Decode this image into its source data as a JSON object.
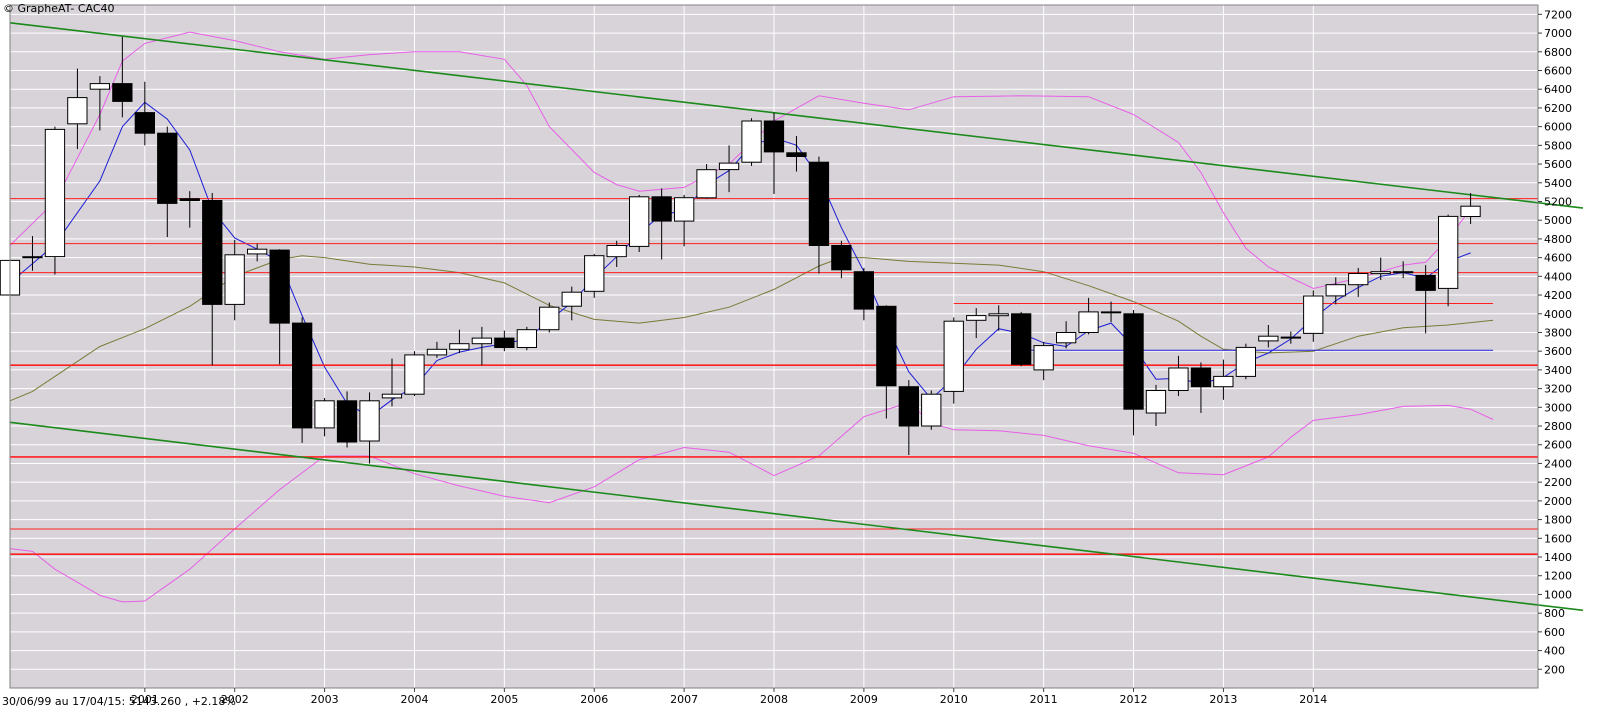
{
  "header": {
    "title": "© GrapheAT- CAC40",
    "footer_info": "30/06/99 au 17/04/15: 5143.260 , +2.18%"
  },
  "colors": {
    "background": "#ffffff",
    "plot_background": "#d7d3d8",
    "grid": "#ffffff",
    "up_candle": "#ffffff",
    "down_candle": "#000000",
    "bollinger_band": "#e85fe8",
    "moving_average_short": "#1c1cd8",
    "moving_average_long": "#7a7a38",
    "trend_channel": "#1b8a1b",
    "support_resistance": "#ff2020"
  },
  "chart_data": {
    "type": "candlestick",
    "title": "© GrapheAT- CAC40",
    "footer": "30/06/99 au 17/04/15: 5143.260 , +2.18%",
    "x_axis": {
      "tick_labels": [
        "2001",
        "2002",
        "2003",
        "2004",
        "2005",
        "2006",
        "2007",
        "2008",
        "2009",
        "2010",
        "2011",
        "2012",
        "2013",
        "2014"
      ],
      "range": [
        1999.5,
        2016.5
      ]
    },
    "y_axis": {
      "tick_labels": [
        "7200",
        "7000",
        "6800",
        "6600",
        "6400",
        "6200",
        "6000",
        "5800",
        "5600",
        "5400",
        "5200",
        "5000",
        "4800",
        "4600",
        "4400",
        "4200",
        "4000",
        "3800",
        "3600",
        "3400",
        "3200",
        "3000",
        "2800",
        "2600",
        "2400",
        "2200",
        "2000",
        "1800",
        "1600",
        "1400",
        "1200",
        "1000",
        "800",
        "600",
        "400",
        "200"
      ],
      "range": [
        0,
        7300
      ],
      "side": "right"
    },
    "grid": true,
    "candles": [
      {
        "t": 1999.5,
        "o": 4200,
        "h": 4620,
        "l": 4100,
        "c": 4570
      },
      {
        "t": 1999.75,
        "o": 4600,
        "h": 4830,
        "l": 4460,
        "c": 4610
      },
      {
        "t": 2000.0,
        "o": 4610,
        "h": 6000,
        "l": 4420,
        "c": 5970
      },
      {
        "t": 2000.25,
        "o": 6030,
        "h": 6620,
        "l": 5760,
        "c": 6310
      },
      {
        "t": 2000.5,
        "o": 6400,
        "h": 6540,
        "l": 5960,
        "c": 6460
      },
      {
        "t": 2000.75,
        "o": 6460,
        "h": 6960,
        "l": 6100,
        "c": 6270
      },
      {
        "t": 2001.0,
        "o": 6150,
        "h": 6480,
        "l": 5800,
        "c": 5930
      },
      {
        "t": 2001.25,
        "o": 5930,
        "h": 6000,
        "l": 4820,
        "c": 5180
      },
      {
        "t": 2001.5,
        "o": 5230,
        "h": 5310,
        "l": 4920,
        "c": 5210
      },
      {
        "t": 2001.75,
        "o": 5210,
        "h": 5290,
        "l": 3450,
        "c": 4100
      },
      {
        "t": 2002.0,
        "o": 4100,
        "h": 4790,
        "l": 3930,
        "c": 4630
      },
      {
        "t": 2002.25,
        "o": 4640,
        "h": 4750,
        "l": 4560,
        "c": 4690
      },
      {
        "t": 2002.5,
        "o": 4680,
        "h": 4690,
        "l": 3460,
        "c": 3900
      },
      {
        "t": 2002.75,
        "o": 3900,
        "h": 3960,
        "l": 2620,
        "c": 2780
      },
      {
        "t": 2003.0,
        "o": 2780,
        "h": 3100,
        "l": 2690,
        "c": 3070
      },
      {
        "t": 2003.25,
        "o": 3070,
        "h": 3170,
        "l": 2570,
        "c": 2630
      },
      {
        "t": 2003.5,
        "o": 2640,
        "h": 3160,
        "l": 2400,
        "c": 3070
      },
      {
        "t": 2003.75,
        "o": 3100,
        "h": 3520,
        "l": 3010,
        "c": 3140
      },
      {
        "t": 2004.0,
        "o": 3140,
        "h": 3600,
        "l": 3120,
        "c": 3560
      },
      {
        "t": 2004.25,
        "o": 3560,
        "h": 3700,
        "l": 3530,
        "c": 3620
      },
      {
        "t": 2004.5,
        "o": 3620,
        "h": 3830,
        "l": 3580,
        "c": 3680
      },
      {
        "t": 2004.75,
        "o": 3680,
        "h": 3860,
        "l": 3450,
        "c": 3740
      },
      {
        "t": 2005.0,
        "o": 3740,
        "h": 3820,
        "l": 3600,
        "c": 3640
      },
      {
        "t": 2005.25,
        "o": 3640,
        "h": 3860,
        "l": 3610,
        "c": 3830
      },
      {
        "t": 2005.5,
        "o": 3830,
        "h": 4120,
        "l": 3800,
        "c": 4070
      },
      {
        "t": 2005.75,
        "o": 4080,
        "h": 4290,
        "l": 3930,
        "c": 4230
      },
      {
        "t": 2006.0,
        "o": 4240,
        "h": 4640,
        "l": 4170,
        "c": 4620
      },
      {
        "t": 2006.25,
        "o": 4610,
        "h": 4780,
        "l": 4500,
        "c": 4730
      },
      {
        "t": 2006.5,
        "o": 4720,
        "h": 5270,
        "l": 4660,
        "c": 5250
      },
      {
        "t": 2006.75,
        "o": 5250,
        "h": 5340,
        "l": 4580,
        "c": 4990
      },
      {
        "t": 2007.0,
        "o": 4990,
        "h": 5270,
        "l": 4720,
        "c": 5240
      },
      {
        "t": 2007.25,
        "o": 5240,
        "h": 5600,
        "l": 5230,
        "c": 5540
      },
      {
        "t": 2007.5,
        "o": 5540,
        "h": 5800,
        "l": 5300,
        "c": 5610
      },
      {
        "t": 2007.75,
        "o": 5620,
        "h": 6090,
        "l": 5580,
        "c": 6060
      },
      {
        "t": 2008.0,
        "o": 6060,
        "h": 6150,
        "l": 5280,
        "c": 5730
      },
      {
        "t": 2008.25,
        "o": 5720,
        "h": 5900,
        "l": 5520,
        "c": 5680
      },
      {
        "t": 2008.5,
        "o": 5620,
        "h": 5680,
        "l": 4430,
        "c": 4730
      },
      {
        "t": 2008.75,
        "o": 4730,
        "h": 4780,
        "l": 4380,
        "c": 4470
      },
      {
        "t": 2009.0,
        "o": 4450,
        "h": 4490,
        "l": 3930,
        "c": 4050
      },
      {
        "t": 2009.25,
        "o": 4080,
        "h": 4090,
        "l": 2880,
        "c": 3230
      },
      {
        "t": 2009.5,
        "o": 3220,
        "h": 3290,
        "l": 2490,
        "c": 2800
      },
      {
        "t": 2009.75,
        "o": 2800,
        "h": 3180,
        "l": 2760,
        "c": 3140
      },
      {
        "t": 2010.0,
        "o": 3170,
        "h": 3960,
        "l": 3040,
        "c": 3920
      },
      {
        "t": 2010.25,
        "o": 3930,
        "h": 4060,
        "l": 3740,
        "c": 3980
      },
      {
        "t": 2010.5,
        "o": 3980,
        "h": 4090,
        "l": 3820,
        "c": 4000
      },
      {
        "t": 2010.75,
        "o": 4000,
        "h": 4020,
        "l": 3440,
        "c": 3460
      },
      {
        "t": 2011.0,
        "o": 3400,
        "h": 3700,
        "l": 3290,
        "c": 3660
      },
      {
        "t": 2011.25,
        "o": 3690,
        "h": 3920,
        "l": 3630,
        "c": 3800
      },
      {
        "t": 2011.5,
        "o": 3800,
        "h": 4170,
        "l": 3780,
        "c": 4020
      },
      {
        "t": 2011.75,
        "o": 4020,
        "h": 4130,
        "l": 3910,
        "c": 4010
      },
      {
        "t": 2012.0,
        "o": 4000,
        "h": 4040,
        "l": 2700,
        "c": 2980
      },
      {
        "t": 2012.25,
        "o": 2940,
        "h": 3240,
        "l": 2800,
        "c": 3180
      },
      {
        "t": 2012.5,
        "o": 3180,
        "h": 3550,
        "l": 3120,
        "c": 3420
      },
      {
        "t": 2012.75,
        "o": 3420,
        "h": 3480,
        "l": 2940,
        "c": 3220
      },
      {
        "t": 2013.0,
        "o": 3220,
        "h": 3510,
        "l": 3080,
        "c": 3330
      },
      {
        "t": 2013.25,
        "o": 3330,
        "h": 3680,
        "l": 3300,
        "c": 3640
      },
      {
        "t": 2013.5,
        "o": 3710,
        "h": 3880,
        "l": 3640,
        "c": 3760
      },
      {
        "t": 2013.75,
        "o": 3740,
        "h": 3810,
        "l": 3680,
        "c": 3750
      },
      {
        "t": 2014.0,
        "o": 3790,
        "h": 4250,
        "l": 3700,
        "c": 4190
      },
      {
        "t": 2014.25,
        "o": 4190,
        "h": 4390,
        "l": 4100,
        "c": 4310
      },
      {
        "t": 2014.5,
        "o": 4310,
        "h": 4490,
        "l": 4180,
        "c": 4430
      },
      {
        "t": 2014.75,
        "o": 4430,
        "h": 4600,
        "l": 4360,
        "c": 4450
      },
      {
        "t": 2015.0,
        "o": 4450,
        "h": 4560,
        "l": 4380,
        "c": 4440
      },
      {
        "t": 2015.25,
        "o": 4410,
        "h": 4520,
        "l": 3790,
        "c": 4250
      },
      {
        "t": 2015.5,
        "o": 4270,
        "h": 5060,
        "l": 4080,
        "c": 5040
      },
      {
        "t": 2015.75,
        "o": 5040,
        "h": 5290,
        "l": 4960,
        "c": 5150
      }
    ],
    "bollinger_upper": [
      [
        1999.5,
        4730
      ],
      [
        2000.0,
        5200
      ],
      [
        2000.5,
        6130
      ],
      [
        2000.75,
        6700
      ],
      [
        2001.0,
        6890
      ],
      [
        2001.5,
        7010
      ],
      [
        2002.0,
        6920
      ],
      [
        2002.5,
        6800
      ],
      [
        2003.0,
        6720
      ],
      [
        2003.5,
        6770
      ],
      [
        2004.0,
        6800
      ],
      [
        2004.5,
        6800
      ],
      [
        2005.0,
        6720
      ],
      [
        2005.25,
        6440
      ],
      [
        2005.5,
        6000
      ],
      [
        2006.0,
        5510
      ],
      [
        2006.25,
        5380
      ],
      [
        2006.5,
        5310
      ],
      [
        2007.0,
        5350
      ],
      [
        2007.5,
        5600
      ],
      [
        2008.0,
        6060
      ],
      [
        2008.5,
        6330
      ],
      [
        2009.0,
        6250
      ],
      [
        2009.5,
        6180
      ],
      [
        2010.0,
        6320
      ],
      [
        2010.75,
        6330
      ],
      [
        2011.5,
        6320
      ],
      [
        2012.0,
        6130
      ],
      [
        2012.5,
        5830
      ],
      [
        2012.75,
        5510
      ],
      [
        2013.0,
        5080
      ],
      [
        2013.25,
        4700
      ],
      [
        2013.5,
        4500
      ],
      [
        2014.0,
        4270
      ],
      [
        2014.5,
        4380
      ],
      [
        2015.0,
        4520
      ],
      [
        2015.25,
        4550
      ],
      [
        2015.5,
        4800
      ],
      [
        2015.75,
        5120
      ]
    ],
    "bollinger_lower": [
      [
        1999.5,
        1490
      ],
      [
        1999.75,
        1460
      ],
      [
        2000.0,
        1270
      ],
      [
        2000.5,
        990
      ],
      [
        2000.75,
        920
      ],
      [
        2001.0,
        930
      ],
      [
        2001.5,
        1270
      ],
      [
        2002.0,
        1700
      ],
      [
        2002.5,
        2120
      ],
      [
        2003.0,
        2480
      ],
      [
        2003.5,
        2480
      ],
      [
        2004.0,
        2290
      ],
      [
        2004.5,
        2160
      ],
      [
        2005.0,
        2050
      ],
      [
        2005.5,
        1980
      ],
      [
        2006.0,
        2150
      ],
      [
        2006.5,
        2440
      ],
      [
        2007.0,
        2570
      ],
      [
        2007.5,
        2520
      ],
      [
        2008.0,
        2270
      ],
      [
        2008.5,
        2480
      ],
      [
        2009.0,
        2900
      ],
      [
        2009.5,
        3050
      ],
      [
        2009.75,
        2830
      ],
      [
        2010.0,
        2760
      ],
      [
        2010.5,
        2750
      ],
      [
        2011.0,
        2700
      ],
      [
        2011.5,
        2590
      ],
      [
        2012.0,
        2510
      ],
      [
        2012.5,
        2300
      ],
      [
        2013.0,
        2280
      ],
      [
        2013.5,
        2470
      ],
      [
        2013.75,
        2680
      ],
      [
        2014.0,
        2860
      ],
      [
        2014.5,
        2920
      ],
      [
        2015.0,
        3010
      ],
      [
        2015.5,
        3020
      ],
      [
        2015.75,
        2980
      ],
      [
        2016.0,
        2870
      ]
    ],
    "ma_short": [
      [
        1999.5,
        4330
      ],
      [
        2000.0,
        4740
      ],
      [
        2000.5,
        5420
      ],
      [
        2000.75,
        6000
      ],
      [
        2001.0,
        6260
      ],
      [
        2001.25,
        6080
      ],
      [
        2001.5,
        5750
      ],
      [
        2001.75,
        5110
      ],
      [
        2002.0,
        4810
      ],
      [
        2002.25,
        4690
      ],
      [
        2002.5,
        4560
      ],
      [
        2002.75,
        3980
      ],
      [
        2003.0,
        3430
      ],
      [
        2003.25,
        3040
      ],
      [
        2003.5,
        2900
      ],
      [
        2003.75,
        3080
      ],
      [
        2004.0,
        3220
      ],
      [
        2004.25,
        3500
      ],
      [
        2004.5,
        3590
      ],
      [
        2004.75,
        3640
      ],
      [
        2005.0,
        3680
      ],
      [
        2005.25,
        3730
      ],
      [
        2005.5,
        3930
      ],
      [
        2005.75,
        4120
      ],
      [
        2006.0,
        4380
      ],
      [
        2006.25,
        4610
      ],
      [
        2006.5,
        4860
      ],
      [
        2006.75,
        5060
      ],
      [
        2007.0,
        5100
      ],
      [
        2007.25,
        5380
      ],
      [
        2007.5,
        5530
      ],
      [
        2007.75,
        5800
      ],
      [
        2008.0,
        5880
      ],
      [
        2008.25,
        5800
      ],
      [
        2008.5,
        5470
      ],
      [
        2008.75,
        4920
      ],
      [
        2009.0,
        4450
      ],
      [
        2009.25,
        3880
      ],
      [
        2009.5,
        3380
      ],
      [
        2009.75,
        3090
      ],
      [
        2010.0,
        3310
      ],
      [
        2010.25,
        3620
      ],
      [
        2010.5,
        3840
      ],
      [
        2010.75,
        3790
      ],
      [
        2011.0,
        3690
      ],
      [
        2011.25,
        3650
      ],
      [
        2011.5,
        3820
      ],
      [
        2011.75,
        3900
      ],
      [
        2012.0,
        3650
      ],
      [
        2012.25,
        3300
      ],
      [
        2012.5,
        3310
      ],
      [
        2012.75,
        3250
      ],
      [
        2013.0,
        3320
      ],
      [
        2013.25,
        3480
      ],
      [
        2013.5,
        3580
      ],
      [
        2013.75,
        3730
      ],
      [
        2014.0,
        3950
      ],
      [
        2014.25,
        4140
      ],
      [
        2014.5,
        4280
      ],
      [
        2014.75,
        4400
      ],
      [
        2015.0,
        4440
      ],
      [
        2015.25,
        4380
      ],
      [
        2015.5,
        4560
      ],
      [
        2015.75,
        4650
      ]
    ],
    "ma_long": [
      [
        1999.5,
        3070
      ],
      [
        1999.75,
        3170
      ],
      [
        2000.0,
        3330
      ],
      [
        2000.5,
        3650
      ],
      [
        2001.0,
        3840
      ],
      [
        2001.5,
        4080
      ],
      [
        2002.0,
        4400
      ],
      [
        2002.5,
        4580
      ],
      [
        2002.75,
        4620
      ],
      [
        2003.0,
        4600
      ],
      [
        2003.5,
        4530
      ],
      [
        2004.0,
        4500
      ],
      [
        2004.5,
        4440
      ],
      [
        2005.0,
        4330
      ],
      [
        2005.5,
        4090
      ],
      [
        2006.0,
        3940
      ],
      [
        2006.5,
        3900
      ],
      [
        2007.0,
        3960
      ],
      [
        2007.5,
        4070
      ],
      [
        2008.0,
        4260
      ],
      [
        2008.5,
        4510
      ],
      [
        2008.75,
        4600
      ],
      [
        2009.0,
        4600
      ],
      [
        2009.5,
        4560
      ],
      [
        2010.0,
        4540
      ],
      [
        2010.5,
        4520
      ],
      [
        2011.0,
        4450
      ],
      [
        2011.5,
        4300
      ],
      [
        2012.0,
        4130
      ],
      [
        2012.5,
        3920
      ],
      [
        2012.75,
        3760
      ],
      [
        2013.0,
        3620
      ],
      [
        2013.5,
        3580
      ],
      [
        2014.0,
        3600
      ],
      [
        2014.25,
        3680
      ],
      [
        2014.5,
        3760
      ],
      [
        2015.0,
        3850
      ],
      [
        2015.5,
        3880
      ],
      [
        2016.0,
        3930
      ]
    ],
    "trend_channel": [
      {
        "from": [
          1999.5,
          7110
        ],
        "to": [
          2017.0,
          5130
        ]
      },
      {
        "from": [
          1999.5,
          2840
        ],
        "to": [
          2017.0,
          830
        ]
      }
    ],
    "horizontal_levels": [
      {
        "y": 5230,
        "x_from": 1999.5,
        "x_to": 2016.5,
        "weight": "thin"
      },
      {
        "y": 4750,
        "x_from": 1999.5,
        "x_to": 2016.5,
        "weight": "thin"
      },
      {
        "y": 4440,
        "x_from": 1999.5,
        "x_to": 2016.5,
        "weight": "thin"
      },
      {
        "y": 4110,
        "x_from": 2010.0,
        "x_to": 2016.0,
        "weight": "thin"
      },
      {
        "y": 3450,
        "x_from": 1999.5,
        "x_to": 2016.5,
        "weight": "thick"
      },
      {
        "y": 2470,
        "x_from": 1999.5,
        "x_to": 2016.5,
        "weight": "thick"
      },
      {
        "y": 1700,
        "x_from": 1999.5,
        "x_to": 2016.5,
        "weight": "thin"
      },
      {
        "y": 1430,
        "x_from": 1999.5,
        "x_to": 2016.5,
        "weight": "thick"
      }
    ],
    "support_line_blue": {
      "y": 3610,
      "x_from": 2010.75,
      "x_to": 2016.0
    }
  }
}
